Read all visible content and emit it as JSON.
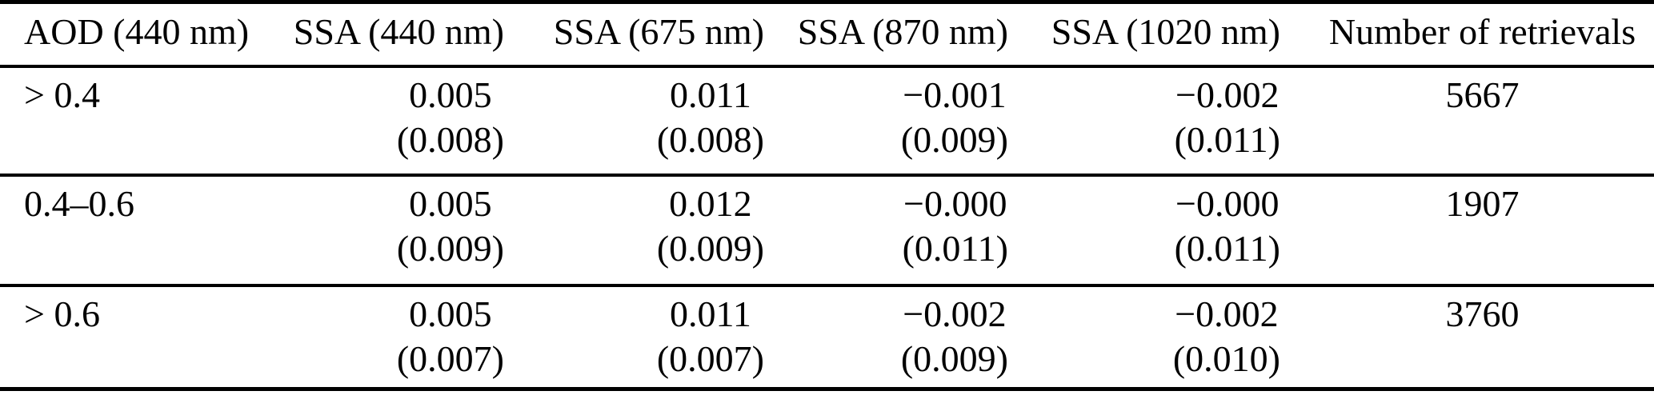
{
  "page": {
    "background": "#ffffff",
    "text_color": "#000000",
    "rule_color": "#000000"
  },
  "table": {
    "headers": [
      "AOD (440 nm)",
      "SSA (440 nm)",
      "SSA (675 nm)",
      "SSA (870 nm)",
      "SSA (1020 nm)",
      "Number of retrievals"
    ],
    "rows": [
      {
        "aod_range": "> 0.4",
        "ssa_440": "0.005",
        "ssa_440_sd": "(0.008)",
        "ssa_675": "0.011",
        "ssa_675_sd": "(0.008)",
        "ssa_870": "−0.001",
        "ssa_870_sd": "(0.009)",
        "ssa_1020": "−0.002",
        "ssa_1020_sd": "(0.011)",
        "retrievals": "5667"
      },
      {
        "aod_range": "0.4–0.6",
        "ssa_440": "0.005",
        "ssa_440_sd": "(0.009)",
        "ssa_675": "0.012",
        "ssa_675_sd": "(0.009)",
        "ssa_870": "−0.000",
        "ssa_870_sd": "(0.011)",
        "ssa_1020": "−0.000",
        "ssa_1020_sd": "(0.011)",
        "retrievals": "1907"
      },
      {
        "aod_range": "> 0.6",
        "ssa_440": "0.005",
        "ssa_440_sd": "(0.007)",
        "ssa_675": "0.011",
        "ssa_675_sd": "(0.007)",
        "ssa_870": "−0.002",
        "ssa_870_sd": "(0.009)",
        "ssa_1020": "−0.002",
        "ssa_1020_sd": "(0.010)",
        "retrievals": "3760"
      }
    ]
  }
}
